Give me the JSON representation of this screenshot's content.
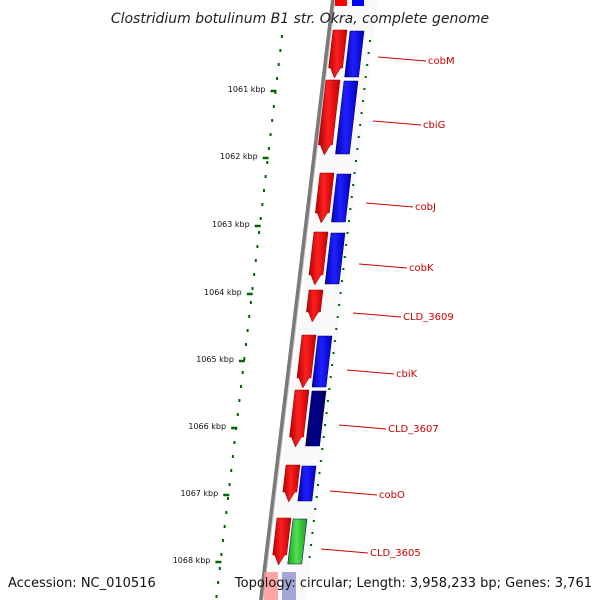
{
  "title": "Clostridium botulinum B1 str. Okra, complete genome",
  "footer": {
    "accession": "Accession: NC_010516",
    "stats": "Topology: circular; Length: 3,958,233 bp; Genes: 3,761"
  },
  "colors": {
    "forward_strand": "#ff0000",
    "cds_blue": "#0000ff",
    "cds_dark_blue": "#000080",
    "cds_green": "#33cc33",
    "tick": "#006600",
    "label": "#cc0000",
    "backbone": "#808080"
  },
  "scale": {
    "ticks": [
      {
        "label": "1061 kbp"
      },
      {
        "label": "1062 kbp"
      },
      {
        "label": "1063 kbp"
      },
      {
        "label": "1064 kbp"
      },
      {
        "label": "1065 kbp"
      },
      {
        "label": "1066 kbp"
      },
      {
        "label": "1067 kbp"
      },
      {
        "label": "1068 kbp"
      }
    ]
  },
  "genes": [
    {
      "name": "cobM"
    },
    {
      "name": "cbiG"
    },
    {
      "name": "cobJ"
    },
    {
      "name": "cobK"
    },
    {
      "name": "CLD_3609"
    },
    {
      "name": "cbiK"
    },
    {
      "name": "CLD_3607"
    },
    {
      "name": "cobO"
    },
    {
      "name": "CLD_3605"
    }
  ]
}
